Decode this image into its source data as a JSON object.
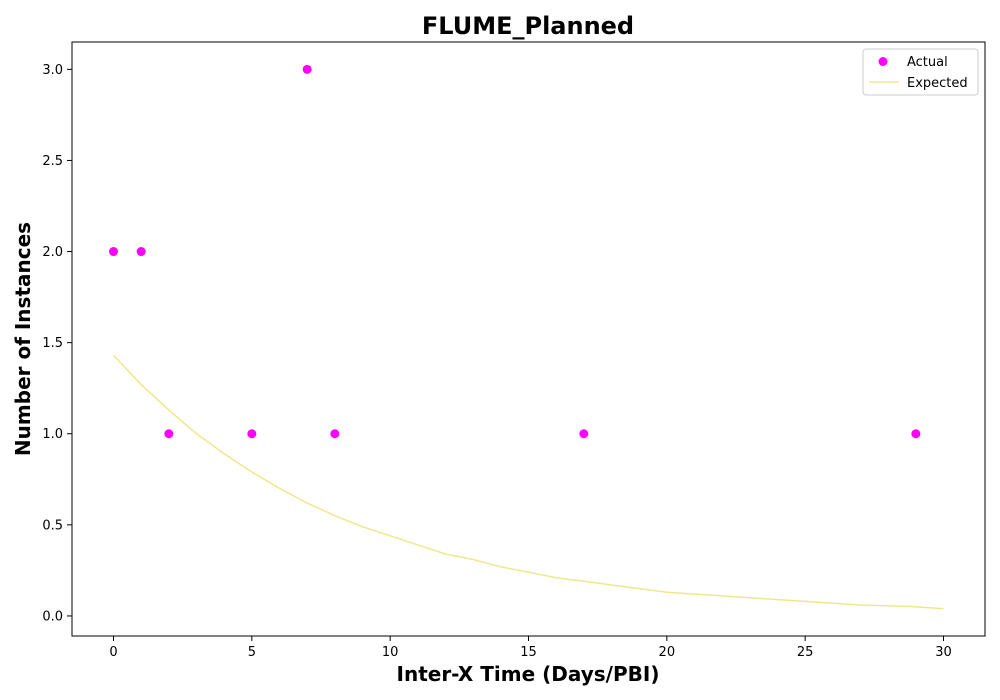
{
  "chart_data": {
    "type": "scatter",
    "title": "FLUME_Planned",
    "xlabel": "Inter-X Time (Days/PBI)",
    "ylabel": "Number of Instances",
    "xlim": [
      -1.5,
      31.5
    ],
    "ylim": [
      -0.11,
      3.15
    ],
    "xticks": [
      0,
      5,
      10,
      15,
      20,
      25,
      30
    ],
    "yticks": [
      0.0,
      0.5,
      1.0,
      1.5,
      2.0,
      2.5,
      3.0
    ],
    "xtick_labels": [
      "0",
      "5",
      "10",
      "15",
      "20",
      "25",
      "30"
    ],
    "ytick_labels": [
      "0.0",
      "0.5",
      "1.0",
      "1.5",
      "2.0",
      "2.5",
      "3.0"
    ],
    "grid": false,
    "legend": {
      "position": "top-right",
      "entries": [
        "Actual",
        "Expected"
      ]
    },
    "series": [
      {
        "name": "Actual",
        "kind": "scatter",
        "color": "#ff00ff",
        "x": [
          0,
          1,
          2,
          5,
          7,
          8,
          17,
          29
        ],
        "y": [
          2,
          2,
          1,
          1,
          3,
          1,
          1,
          1
        ]
      },
      {
        "name": "Expected",
        "kind": "line",
        "color": "#f0e68c",
        "x": [
          0,
          1,
          2,
          3,
          4,
          5,
          6,
          7,
          8,
          9,
          10,
          11,
          12,
          13,
          14,
          15,
          16,
          17,
          18,
          19,
          20,
          21,
          22,
          23,
          24,
          25,
          26,
          27,
          28,
          29,
          30
        ],
        "y": [
          1.43,
          1.27,
          1.13,
          1.0,
          0.89,
          0.79,
          0.7,
          0.62,
          0.55,
          0.49,
          0.44,
          0.39,
          0.34,
          0.31,
          0.27,
          0.24,
          0.21,
          0.19,
          0.17,
          0.15,
          0.13,
          0.12,
          0.11,
          0.1,
          0.09,
          0.08,
          0.07,
          0.06,
          0.055,
          0.05,
          0.04
        ]
      }
    ]
  }
}
